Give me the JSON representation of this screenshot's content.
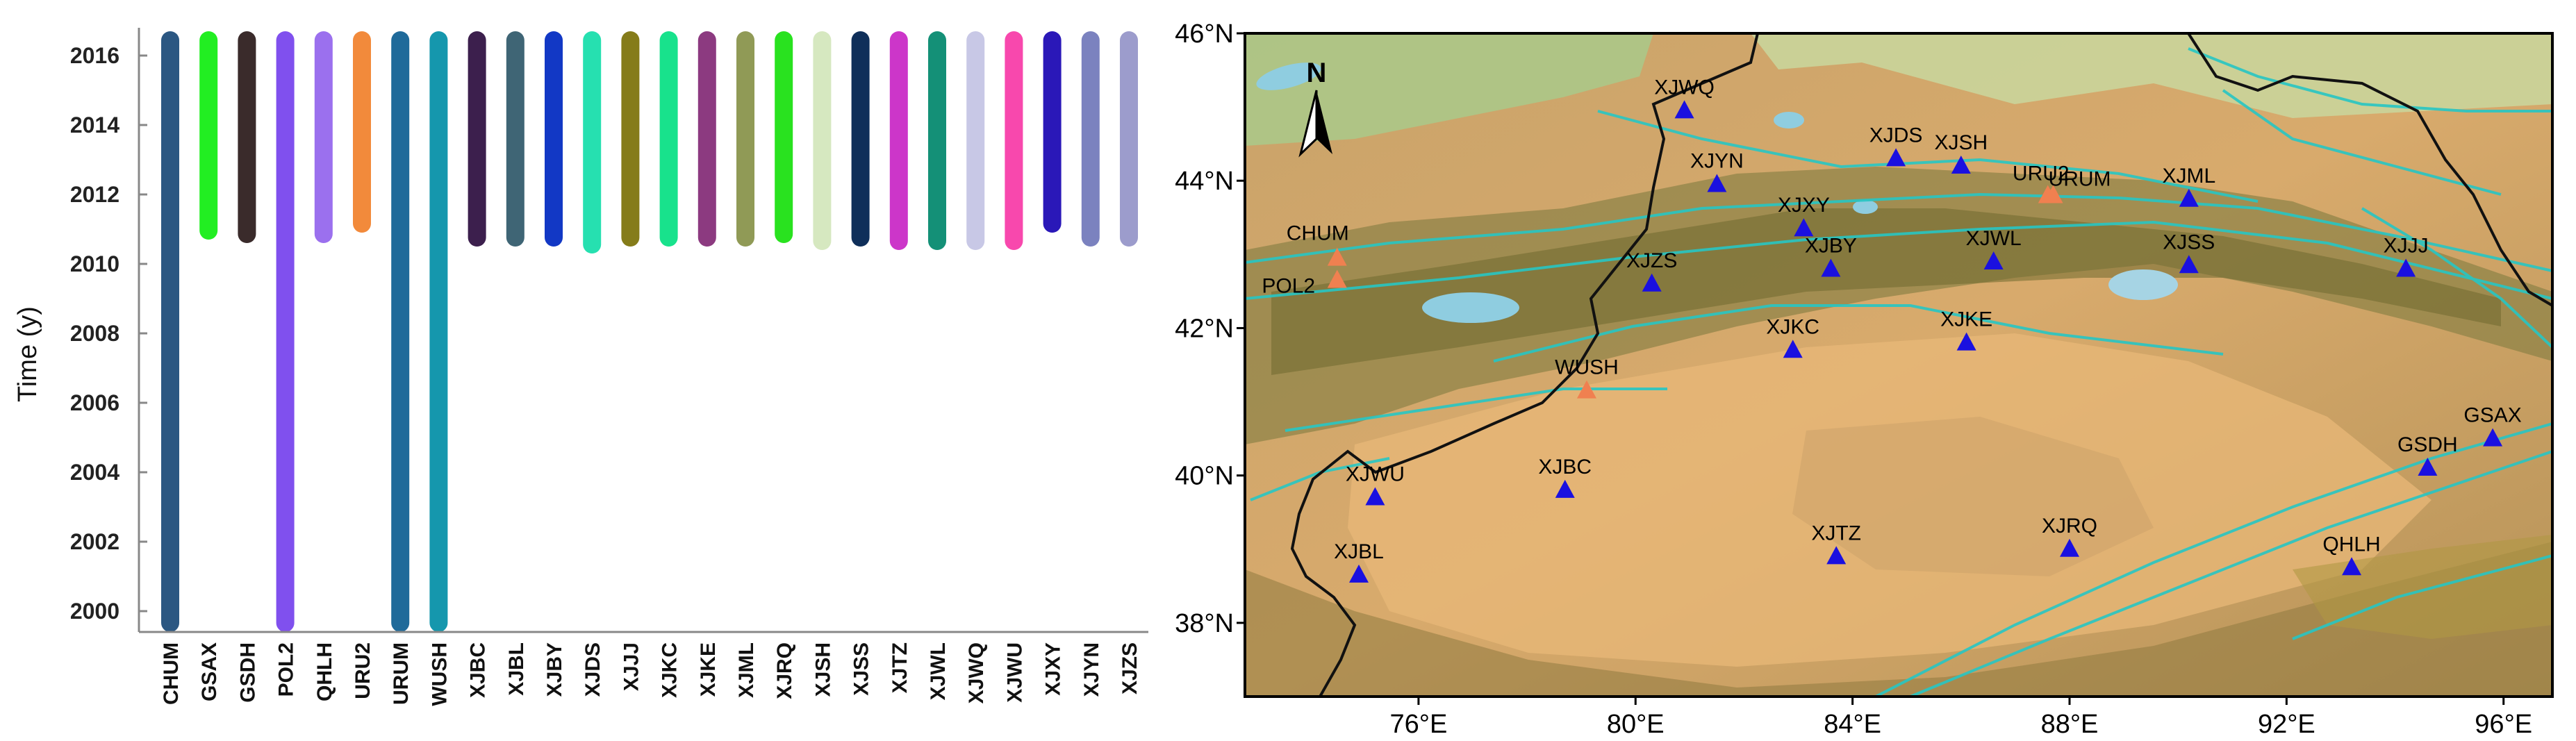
{
  "chart_data": [
    {
      "type": "timeline",
      "ylabel": "Time (y)",
      "ylim": [
        1999.4,
        2016.8
      ],
      "yticks": [
        2000,
        2002,
        2004,
        2006,
        2008,
        2010,
        2012,
        2014,
        2016
      ],
      "stations": [
        {
          "name": "CHUM",
          "start": 1999.4,
          "end": 2016.7,
          "color": "#2b5782",
          "gaps": []
        },
        {
          "name": "GSAX",
          "start": 2010.7,
          "end": 2016.7,
          "color": "#22ee22",
          "gaps": []
        },
        {
          "name": "GSDH",
          "start": 2010.6,
          "end": 2016.7,
          "color": "#3a2b2b",
          "gaps": []
        },
        {
          "name": "POL2",
          "start": 1999.4,
          "end": 2016.7,
          "color": "#8050ee",
          "gaps": []
        },
        {
          "name": "QHLH",
          "start": 2010.6,
          "end": 2016.7,
          "color": "#9b70ee",
          "gaps": []
        },
        {
          "name": "URU2",
          "start": 2010.9,
          "end": 2016.7,
          "color": "#f28a3b",
          "gaps": []
        },
        {
          "name": "URUM",
          "start": 1999.4,
          "end": 2016.7,
          "color": "#1f6a9a",
          "gaps": []
        },
        {
          "name": "WUSH",
          "start": 1999.4,
          "end": 2016.7,
          "color": "#1597ad",
          "gaps": []
        },
        {
          "name": "XJBC",
          "start": 2010.5,
          "end": 2016.7,
          "color": "#3c1f4d",
          "gaps": []
        },
        {
          "name": "XJBL",
          "start": 2010.5,
          "end": 2016.7,
          "color": "#3f6575",
          "gaps": []
        },
        {
          "name": "XJBY",
          "start": 2010.5,
          "end": 2016.7,
          "color": "#1238c5",
          "gaps": []
        },
        {
          "name": "XJDS",
          "start": 2010.3,
          "end": 2016.7,
          "color": "#26e0b0",
          "gaps": []
        },
        {
          "name": "XJJJ",
          "start": 2010.5,
          "end": 2016.7,
          "color": "#857c1a",
          "gaps": []
        },
        {
          "name": "XJKC",
          "start": 2010.5,
          "end": 2016.7,
          "color": "#18e28c",
          "gaps": []
        },
        {
          "name": "XJKE",
          "start": 2010.5,
          "end": 2016.7,
          "color": "#8c3a80",
          "gaps": []
        },
        {
          "name": "XJML",
          "start": 2010.5,
          "end": 2016.7,
          "color": "#909a56",
          "gaps": []
        },
        {
          "name": "XJRQ",
          "start": 2010.6,
          "end": 2016.7,
          "color": "#29e21f",
          "gaps": []
        },
        {
          "name": "XJSH",
          "start": 2010.4,
          "end": 2016.7,
          "color": "#d6e8c0",
          "gaps": []
        },
        {
          "name": "XJSS",
          "start": 2010.5,
          "end": 2016.7,
          "color": "#0f2f5a",
          "gaps": []
        },
        {
          "name": "XJTZ",
          "start": 2010.4,
          "end": 2016.7,
          "color": "#cc36c9",
          "gaps": []
        },
        {
          "name": "XJWL",
          "start": 2010.4,
          "end": 2016.7,
          "color": "#149077",
          "gaps": []
        },
        {
          "name": "XJWQ",
          "start": 2010.4,
          "end": 2016.7,
          "color": "#c8c8e6",
          "gaps": []
        },
        {
          "name": "XJWU",
          "start": 2010.4,
          "end": 2016.7,
          "color": "#f848ad",
          "gaps": []
        },
        {
          "name": "XJXY",
          "start": 2010.9,
          "end": 2016.7,
          "color": "#2a18b8",
          "gaps": []
        },
        {
          "name": "XJYN",
          "start": 2010.5,
          "end": 2016.7,
          "color": "#7b82bf",
          "gaps": []
        },
        {
          "name": "XJZS",
          "start": 2010.5,
          "end": 2016.7,
          "color": "#9c9ccc",
          "gaps": []
        }
      ]
    },
    {
      "type": "map",
      "lat_labels": [
        "46°N",
        "44°N",
        "42°N",
        "40°N",
        "38°N"
      ],
      "lat_values": [
        46,
        44,
        42,
        40,
        38
      ],
      "lon_labels": [
        "76°E",
        "80°E",
        "84°E",
        "88°E",
        "92°E",
        "96°E"
      ],
      "lon_values": [
        76,
        80,
        84,
        88,
        92,
        96
      ],
      "lon_range": [
        72.8,
        96.9
      ],
      "lat_range": [
        37.0,
        46.0
      ],
      "north_label": "N",
      "stations": [
        {
          "name": "XJWQ",
          "lon": 80.9,
          "lat": 44.95,
          "marker": "triangle-blue"
        },
        {
          "name": "XJYN",
          "lon": 81.5,
          "lat": 43.95,
          "marker": "triangle-blue"
        },
        {
          "name": "XJDS",
          "lon": 84.8,
          "lat": 44.3,
          "marker": "triangle-blue"
        },
        {
          "name": "XJSH",
          "lon": 86.0,
          "lat": 44.2,
          "marker": "triangle-blue"
        },
        {
          "name": "URU2",
          "lon": 87.6,
          "lat": 43.8,
          "marker": "triangle-orange"
        },
        {
          "name": "URUM",
          "lon": 87.7,
          "lat": 43.8,
          "marker": "triangle-orange"
        },
        {
          "name": "XJML",
          "lon": 90.2,
          "lat": 43.75,
          "marker": "triangle-blue"
        },
        {
          "name": "XJXY",
          "lon": 83.1,
          "lat": 43.35,
          "marker": "triangle-blue"
        },
        {
          "name": "XJBY",
          "lon": 83.6,
          "lat": 42.8,
          "marker": "triangle-blue"
        },
        {
          "name": "XJWL",
          "lon": 86.6,
          "lat": 42.9,
          "marker": "triangle-blue"
        },
        {
          "name": "XJSS",
          "lon": 90.2,
          "lat": 42.85,
          "marker": "triangle-blue"
        },
        {
          "name": "XJJJ",
          "lon": 94.2,
          "lat": 42.8,
          "marker": "triangle-blue"
        },
        {
          "name": "CHUM",
          "lon": 74.5,
          "lat": 42.95,
          "marker": "triangle-orange"
        },
        {
          "name": "POL2",
          "lon": 74.5,
          "lat": 42.65,
          "marker": "triangle-orange"
        },
        {
          "name": "XJZS",
          "lon": 80.3,
          "lat": 42.6,
          "marker": "triangle-blue"
        },
        {
          "name": "XJKC",
          "lon": 82.9,
          "lat": 41.7,
          "marker": "triangle-blue"
        },
        {
          "name": "XJKE",
          "lon": 86.1,
          "lat": 41.8,
          "marker": "triangle-blue"
        },
        {
          "name": "WUSH",
          "lon": 79.1,
          "lat": 41.15,
          "marker": "triangle-orange"
        },
        {
          "name": "XJWU",
          "lon": 75.2,
          "lat": 39.7,
          "marker": "triangle-blue"
        },
        {
          "name": "XJBC",
          "lon": 78.7,
          "lat": 39.8,
          "marker": "triangle-blue"
        },
        {
          "name": "XJTZ",
          "lon": 83.7,
          "lat": 38.9,
          "marker": "triangle-blue"
        },
        {
          "name": "XJRQ",
          "lon": 88.0,
          "lat": 39.0,
          "marker": "triangle-blue"
        },
        {
          "name": "GSDH",
          "lon": 94.6,
          "lat": 40.1,
          "marker": "triangle-blue"
        },
        {
          "name": "GSAX",
          "lon": 95.8,
          "lat": 40.5,
          "marker": "triangle-blue"
        },
        {
          "name": "QHLH",
          "lon": 93.2,
          "lat": 38.75,
          "marker": "triangle-blue"
        },
        {
          "name": "XJBL",
          "lon": 74.9,
          "lat": 38.65,
          "marker": "triangle-blue"
        }
      ]
    }
  ]
}
